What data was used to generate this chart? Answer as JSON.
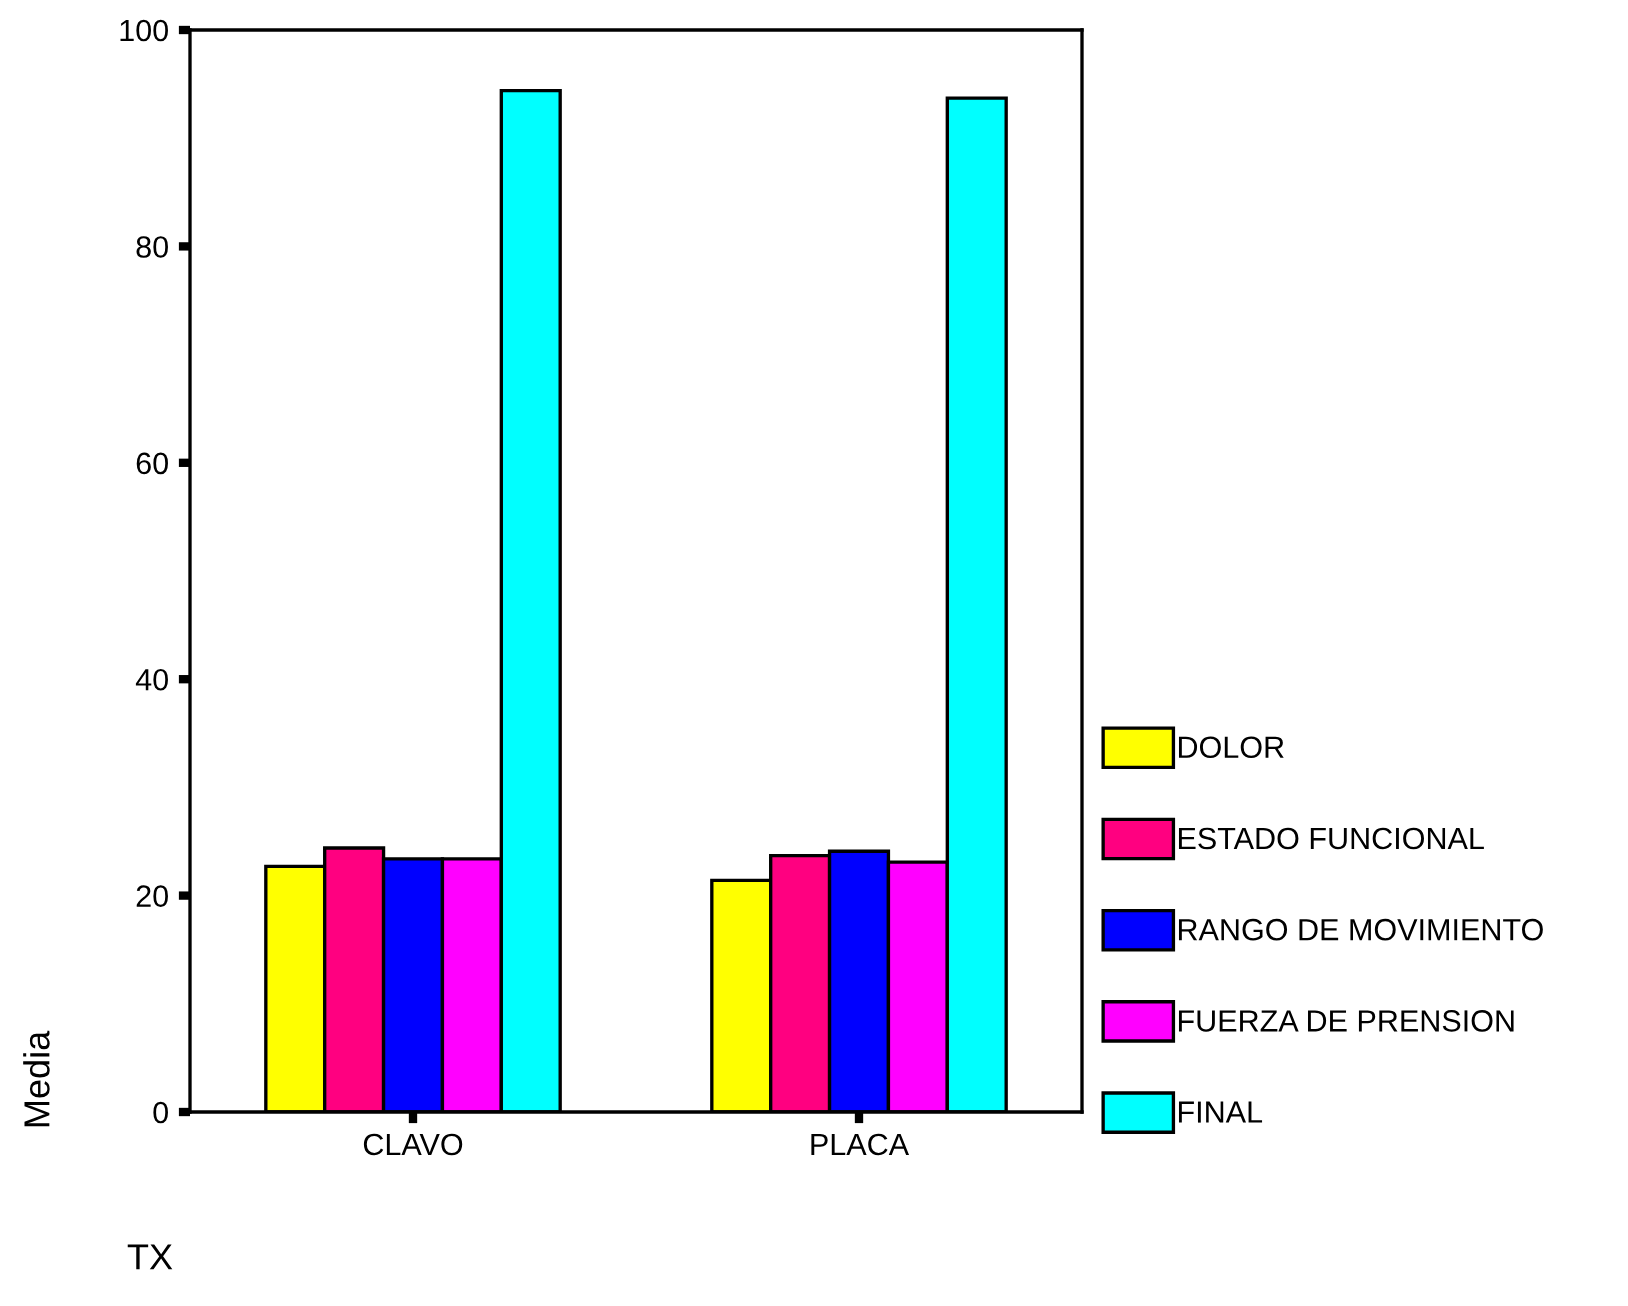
{
  "chart_data": {
    "type": "bar",
    "xlabel": "TX",
    "ylabel": "Media",
    "categories": [
      "CLAVO",
      "PLACA"
    ],
    "series": [
      {
        "name": "DOLOR",
        "color": "#ffff00",
        "values": [
          22.7,
          21.4
        ]
      },
      {
        "name": "ESTADO FUNCIONAL",
        "color": "#ff0080",
        "values": [
          24.4,
          23.7
        ]
      },
      {
        "name": "RANGO DE MOVIMIENTO",
        "color": "#0000ff",
        "values": [
          23.4,
          24.1
        ]
      },
      {
        "name": "FUERZA DE PRENSION",
        "color": "#ff00ff",
        "values": [
          23.4,
          23.1
        ]
      },
      {
        "name": "FINAL",
        "color": "#00ffff",
        "values": [
          94.4,
          93.7
        ]
      }
    ],
    "ylim": [
      0,
      100
    ],
    "yticks": [
      0,
      20,
      40,
      60,
      80,
      100
    ],
    "grid": false,
    "legend": "right"
  }
}
